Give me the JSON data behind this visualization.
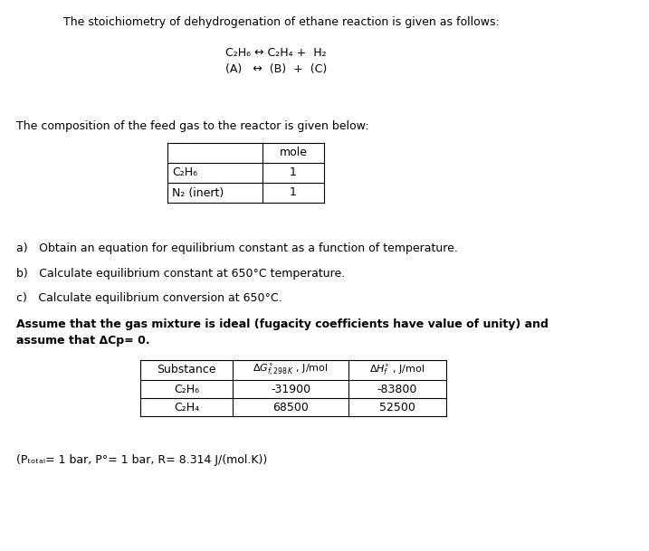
{
  "bg_color": "#ffffff",
  "title_line": "The stoichiometry of dehydrogenation of ethane reaction is given as follows:",
  "reaction_line1": "C₂H₆ ↔ C₂H₄ +  H₂",
  "reaction_line2": "(A)   ↔  (B)  +  (C)",
  "feed_intro": "The composition of the feed gas to the reactor is given below:",
  "feed_table_rows": [
    [
      "C₂H₆",
      "1"
    ],
    [
      "N₂ (inert)",
      "1"
    ]
  ],
  "items_a": "a) Obtain an equation for equilibrium constant as a function of temperature.",
  "items_b": "b) Calculate equilibrium constant at 650°C temperature.",
  "items_c": "c) Calculate equilibrium conversion at 650°C.",
  "bold_text1": "Assume that the gas mixture is ideal (fugacity coefficients have value of unity) and",
  "bold_text2": "assume that ΔCp= 0.",
  "dt_substances": [
    "C₂H₆",
    "C₂H₄"
  ],
  "dt_dg": [
    "-31900",
    "68500"
  ],
  "dt_dh": [
    "-83800",
    "52500"
  ],
  "footer": "(Pₜₒₜₐₗ= 1 bar, P°= 1 bar, R= 8.314 J/(mol.K))"
}
